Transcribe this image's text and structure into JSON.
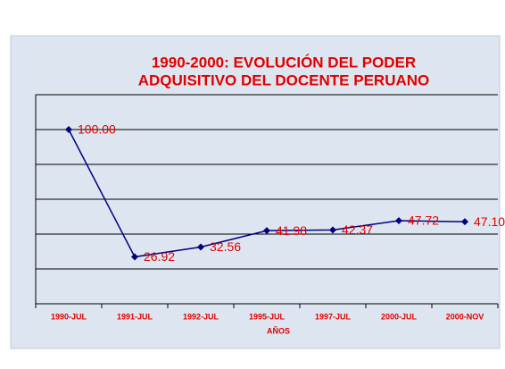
{
  "chart_data": {
    "type": "line",
    "title": [
      "1990-2000: EVOLUCIÓN DEL PODER",
      "ADQUISITIVO DEL DOCENTE PERUANO"
    ],
    "x_label": "AÑOS",
    "categories": [
      "1990-JUL",
      "1991-JUL",
      "1992-JUL",
      "1995-JUL",
      "1997-JUL",
      "2000-JUL",
      "2000-NOV"
    ],
    "series": [
      {
        "color": "#000080",
        "values": [
          100,
          26.92,
          32.56,
          41.98,
          42.37,
          47.72,
          47.1
        ],
        "value_labels": [
          "100.00",
          "26.92",
          "32.56",
          "41.98",
          "42.37",
          "47.72",
          "47.10"
        ]
      }
    ],
    "ylim": [
      0,
      120
    ],
    "yticks": [
      0,
      20,
      40,
      60,
      80,
      100,
      120
    ],
    "grid": true
  }
}
